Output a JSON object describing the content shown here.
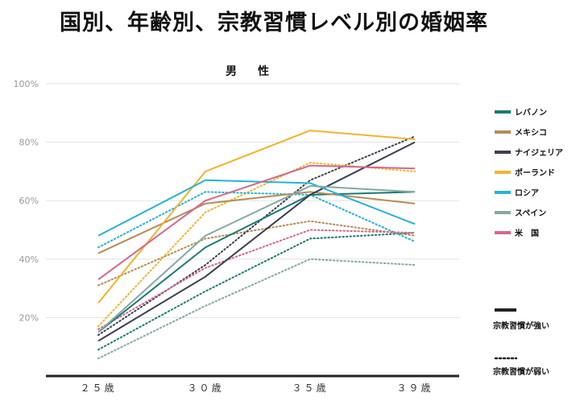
{
  "title": "国別、年齢別、宗教習慣レベル別の婚姻率",
  "chart_data": {
    "type": "line",
    "subtitle": "男　性",
    "categories": [
      "２５歳",
      "３０歳",
      "３５歳",
      "３９歳"
    ],
    "ylim": [
      0,
      100
    ],
    "yticks": [
      20,
      40,
      60,
      80,
      100
    ],
    "ytick_labels": [
      "20%",
      "40%",
      "60%",
      "80%",
      "100%"
    ],
    "legend_position": "right",
    "series": [
      {
        "name": "レバノン",
        "color": "#1a7b73",
        "strong": [
          15,
          44,
          62,
          63
        ],
        "weak": [
          9,
          29,
          47,
          49
        ]
      },
      {
        "name": "メキシコ",
        "color": "#b78b55",
        "strong": [
          42,
          59,
          63,
          59
        ],
        "weak": [
          31,
          47,
          53,
          48
        ]
      },
      {
        "name": "ナイジェリア",
        "color": "#3e3f52",
        "strong": [
          12,
          34,
          62,
          80
        ],
        "weak": [
          14,
          38,
          67,
          82
        ]
      },
      {
        "name": "ポーランド",
        "color": "#f2b42d",
        "strong": [
          25,
          70,
          84,
          81
        ],
        "weak": [
          17,
          56,
          73,
          70
        ]
      },
      {
        "name": "ロシア",
        "color": "#26b2d9",
        "strong": [
          48,
          67,
          66,
          52
        ],
        "weak": [
          44,
          63,
          62,
          46
        ]
      },
      {
        "name": "スペイン",
        "color": "#87a8a2",
        "strong": [
          15,
          48,
          65,
          63
        ],
        "weak": [
          6,
          24,
          40,
          38
        ]
      },
      {
        "name": "米　国",
        "color": "#d6678b",
        "strong": [
          33,
          60,
          72,
          71
        ],
        "weak": [
          16,
          37,
          50,
          49
        ]
      }
    ],
    "style_legend": {
      "strong": "宗教習慣が強い",
      "weak": "宗教習慣が弱い"
    }
  }
}
